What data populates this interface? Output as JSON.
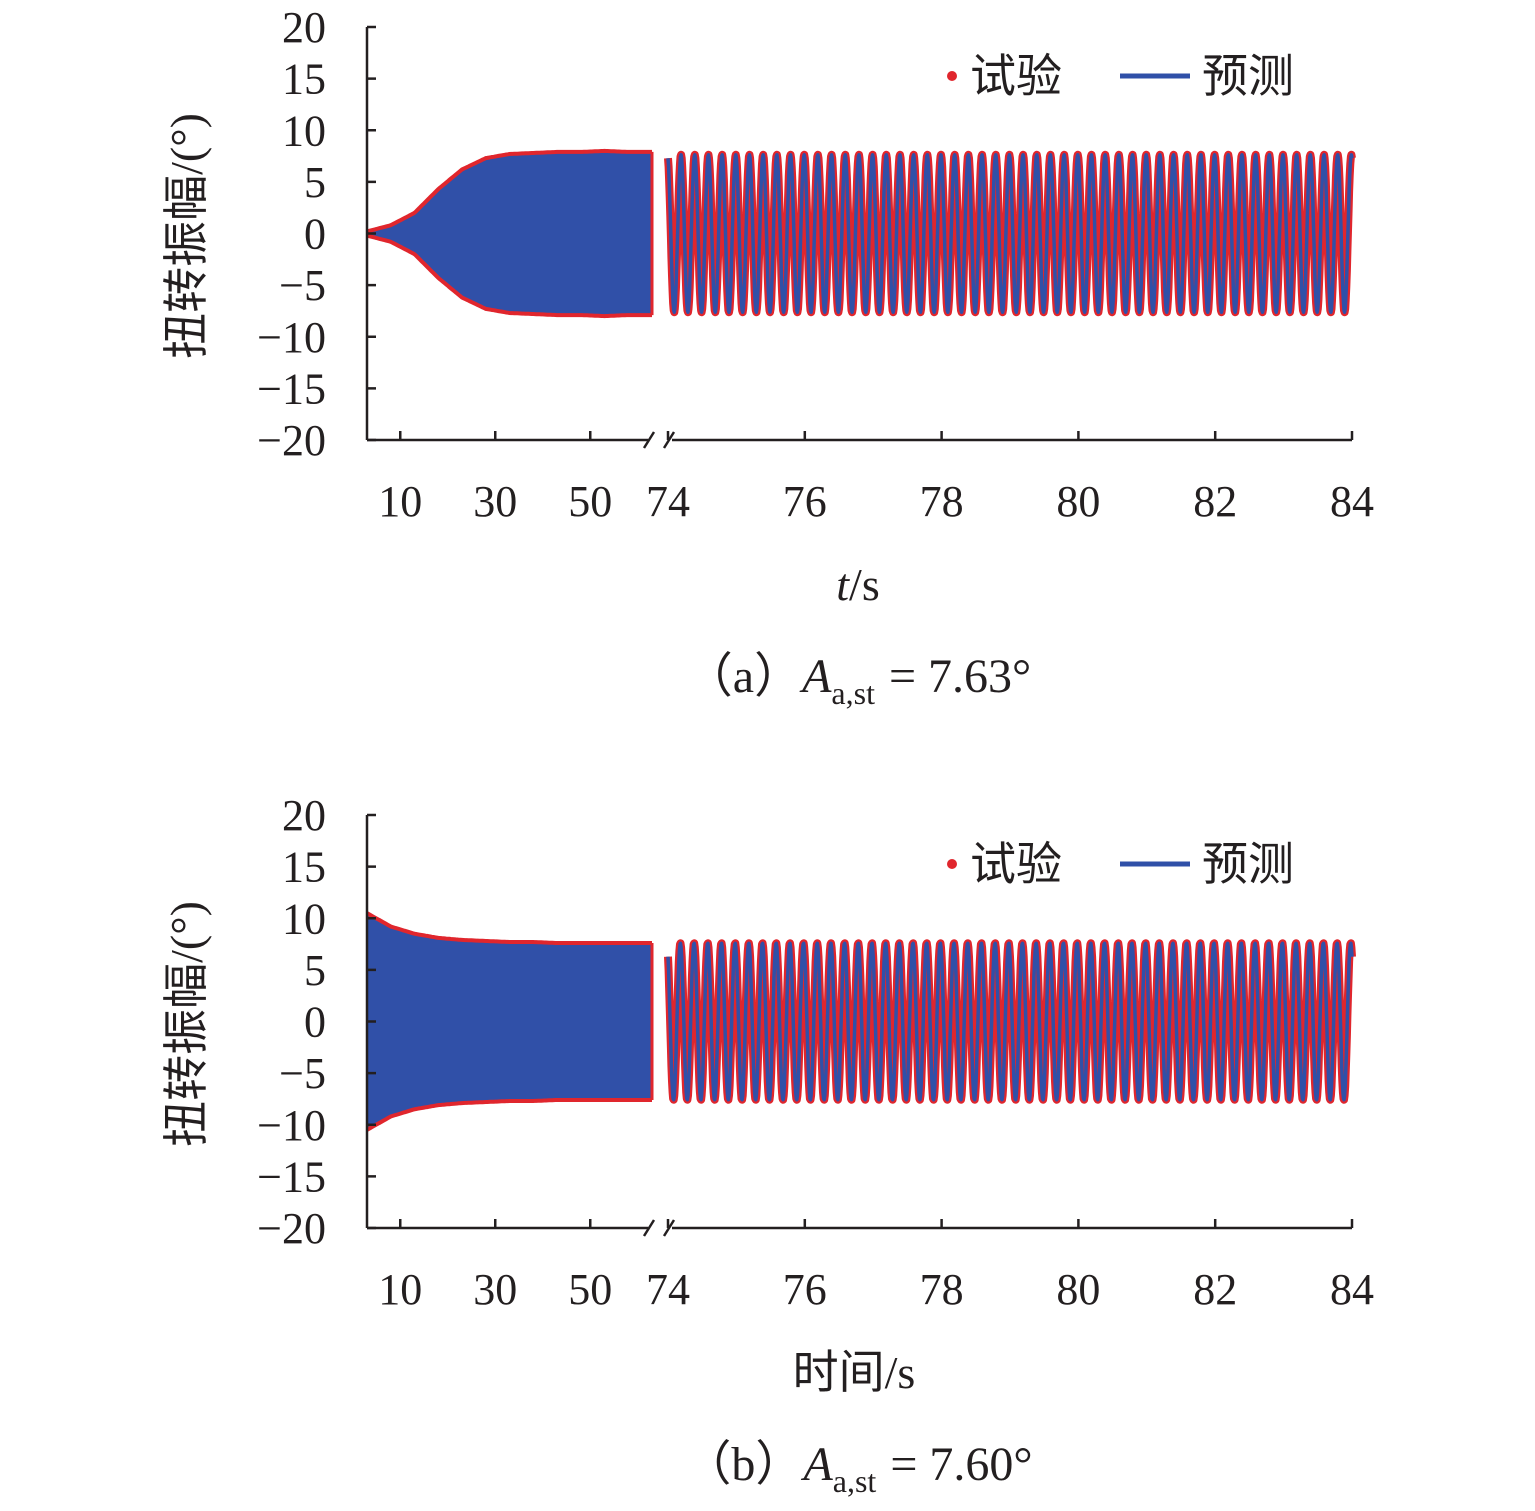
{
  "legend": {
    "experiment": "试验",
    "prediction": "预测"
  },
  "colors": {
    "experiment": "#e0262d",
    "prediction": "#3050a8",
    "axis": "#231f20"
  },
  "chart_data": [
    {
      "type": "line",
      "caption_prefix": "（a）",
      "caption_var": "A",
      "caption_sub": "a,st",
      "caption_value": "= 7.63°",
      "xlabel_var": "t",
      "xlabel_rest": "/s",
      "ylabel": "扭转振幅/(°)",
      "ylim": [
        -20,
        20
      ],
      "yticks": [
        "20",
        "15",
        "10",
        "5",
        "0",
        "−5",
        "−10",
        "−15",
        "−20"
      ],
      "x_axis_broken": true,
      "x_segment1": {
        "range": [
          3,
          63
        ],
        "ticks": [
          "10",
          "30",
          "50"
        ]
      },
      "x_segment2": {
        "range": [
          74,
          84
        ],
        "ticks": [
          "74",
          "76",
          "78",
          "80",
          "82",
          "84"
        ]
      },
      "segment1_envelope_t": [
        3,
        8,
        13,
        18,
        23,
        28,
        33,
        38,
        43,
        48,
        53,
        58,
        63
      ],
      "segment1_envelope_amp": [
        0.2,
        0.8,
        2.0,
        4.3,
        6.2,
        7.3,
        7.7,
        7.8,
        7.9,
        7.9,
        8.0,
        7.9,
        7.9
      ],
      "segment2_amplitude": 7.63,
      "segment2_cycles": 50,
      "series": [
        {
          "name": "试验",
          "style": "markers"
        },
        {
          "name": "预测",
          "style": "line"
        }
      ]
    },
    {
      "type": "line",
      "caption_prefix": "（b）",
      "caption_var": "A",
      "caption_sub": "a,st",
      "caption_value": "= 7.60°",
      "xlabel_var": "",
      "xlabel_rest": "时间/s",
      "ylabel": "扭转振幅/(°)",
      "ylim": [
        -20,
        20
      ],
      "yticks": [
        "20",
        "15",
        "10",
        "5",
        "0",
        "−5",
        "−10",
        "−15",
        "−20"
      ],
      "x_axis_broken": true,
      "x_segment1": {
        "range": [
          3,
          63
        ],
        "ticks": [
          "10",
          "30",
          "50"
        ]
      },
      "x_segment2": {
        "range": [
          74,
          84
        ],
        "ticks": [
          "74",
          "76",
          "78",
          "80",
          "82",
          "84"
        ]
      },
      "segment1_envelope_t": [
        3,
        8,
        13,
        18,
        23,
        28,
        33,
        38,
        43,
        48,
        53,
        58,
        63
      ],
      "segment1_envelope_amp": [
        10.5,
        9.2,
        8.5,
        8.1,
        7.9,
        7.8,
        7.7,
        7.7,
        7.6,
        7.6,
        7.6,
        7.6,
        7.6
      ],
      "segment2_amplitude": 7.6,
      "segment2_cycles": 50,
      "series": [
        {
          "name": "试验",
          "style": "markers"
        },
        {
          "name": "预测",
          "style": "line"
        }
      ]
    }
  ]
}
